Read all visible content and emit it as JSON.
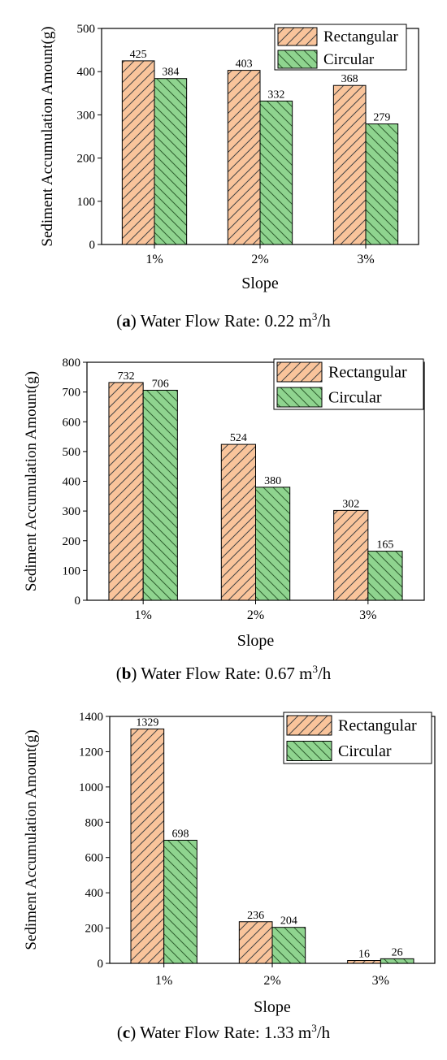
{
  "colors": {
    "rect_fill": "#F9C49B",
    "rect_hatch": "#444444",
    "circ_fill": "#8FD48F",
    "circ_hatch": "#2F5F2F"
  },
  "chart_data": [
    {
      "type": "bar",
      "panel": "a",
      "caption_label": "a",
      "caption_text": " Water Flow Rate: 0.22 m",
      "caption_sup": "3",
      "caption_tail": "/h",
      "xlabel": "Slope",
      "ylabel": "Sediment Accumulation Amount(g)",
      "categories": [
        "1%",
        "2%",
        "3%"
      ],
      "ylim": [
        0,
        500
      ],
      "yticks": [
        0,
        100,
        200,
        300,
        400,
        500
      ],
      "legend_position": "top-right",
      "series": [
        {
          "name": "Rectangular",
          "values": [
            425,
            403,
            368
          ]
        },
        {
          "name": "Circular",
          "values": [
            384,
            332,
            279
          ]
        }
      ]
    },
    {
      "type": "bar",
      "panel": "b",
      "caption_label": "b",
      "caption_text": " Water Flow Rate: 0.67 m",
      "caption_sup": "3",
      "caption_tail": "/h",
      "xlabel": "Slope",
      "ylabel": "Sediment Accumulation Amount(g)",
      "categories": [
        "1%",
        "2%",
        "3%"
      ],
      "ylim": [
        0,
        800
      ],
      "yticks": [
        0,
        100,
        200,
        300,
        400,
        500,
        600,
        700,
        800
      ],
      "legend_position": "top-right",
      "series": [
        {
          "name": "Rectangular",
          "values": [
            732,
            524,
            302
          ]
        },
        {
          "name": "Circular",
          "values": [
            706,
            380,
            165
          ]
        }
      ]
    },
    {
      "type": "bar",
      "panel": "c",
      "caption_label": "c",
      "caption_text": " Water Flow Rate: 1.33 m",
      "caption_sup": "3",
      "caption_tail": "/h",
      "xlabel": "Slope",
      "ylabel": "Sediment Accumulation Amount(g)",
      "categories": [
        "1%",
        "2%",
        "3%"
      ],
      "ylim": [
        0,
        1400
      ],
      "yticks": [
        0,
        200,
        400,
        600,
        800,
        1000,
        1200,
        1400
      ],
      "legend_position": "top-right",
      "series": [
        {
          "name": "Rectangular",
          "values": [
            1329,
            236,
            16
          ]
        },
        {
          "name": "Circular",
          "values": [
            698,
            204,
            26
          ]
        }
      ]
    }
  ]
}
